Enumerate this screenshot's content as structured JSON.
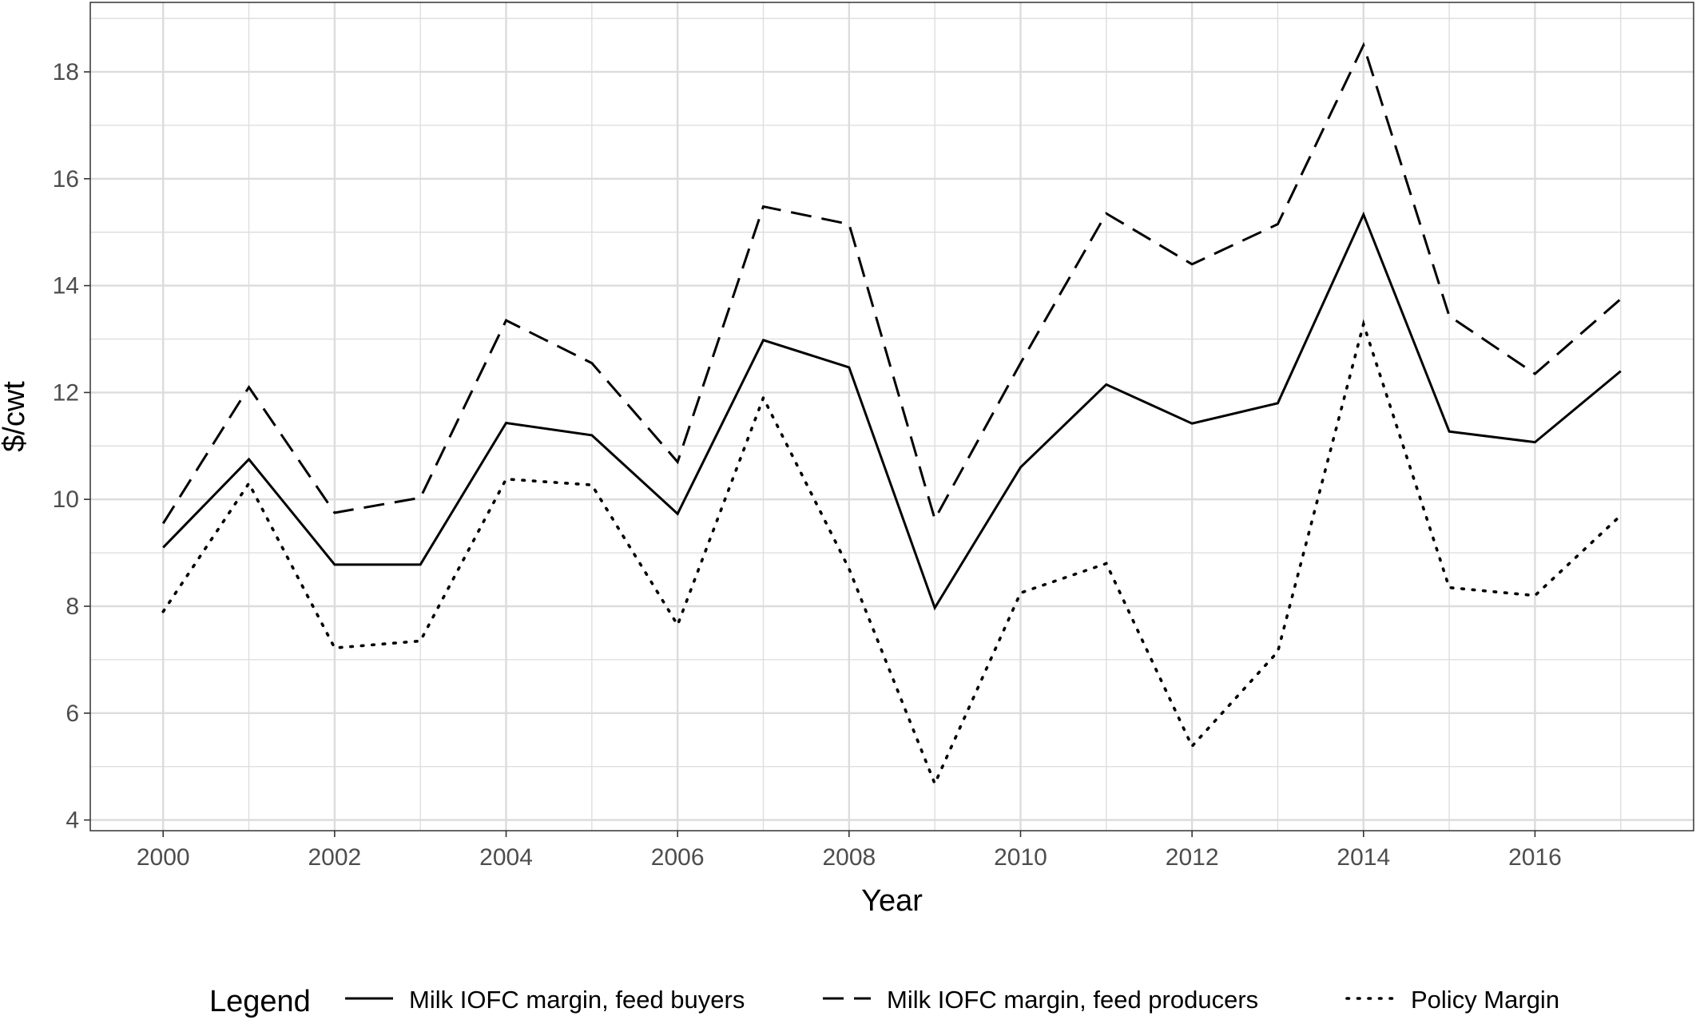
{
  "chart_data": {
    "type": "line",
    "title": "",
    "xlabel": "Year",
    "ylabel": "$/cwt",
    "x": [
      2000,
      2001,
      2002,
      2003,
      2004,
      2005,
      2006,
      2007,
      2008,
      2009,
      2010,
      2011,
      2012,
      2013,
      2014,
      2015,
      2016,
      2017
    ],
    "xlim": [
      1999.15,
      2017.85
    ],
    "ylim": [
      3.8,
      19.3
    ],
    "x_ticks": [
      2000,
      2002,
      2004,
      2006,
      2008,
      2010,
      2012,
      2014,
      2016
    ],
    "y_ticks": [
      4,
      6,
      8,
      10,
      12,
      14,
      16,
      18
    ],
    "grid": true,
    "legend": {
      "title": "Legend",
      "position": "bottom"
    },
    "series": [
      {
        "name": "Milk IOFC margin, feed buyers",
        "line_style": "solid",
        "color": "#000000",
        "values": [
          9.1,
          10.75,
          8.78,
          8.78,
          11.43,
          11.2,
          9.73,
          12.98,
          12.47,
          7.97,
          10.6,
          12.15,
          11.42,
          11.8,
          15.33,
          11.27,
          11.07,
          12.4
        ]
      },
      {
        "name": "Milk IOFC margin, feed producers",
        "line_style": "dashed",
        "color": "#000000",
        "values": [
          9.55,
          12.1,
          9.75,
          10.03,
          13.35,
          12.55,
          10.7,
          15.48,
          15.15,
          9.63,
          12.55,
          15.35,
          14.4,
          15.15,
          18.5,
          13.43,
          12.35,
          13.75
        ]
      },
      {
        "name": "Policy Margin",
        "line_style": "dotted",
        "color": "#000000",
        "values": [
          7.9,
          10.3,
          7.22,
          7.35,
          10.38,
          10.27,
          7.65,
          11.9,
          8.7,
          4.68,
          8.25,
          8.8,
          5.38,
          7.15,
          13.28,
          8.35,
          8.2,
          9.7
        ]
      }
    ]
  }
}
